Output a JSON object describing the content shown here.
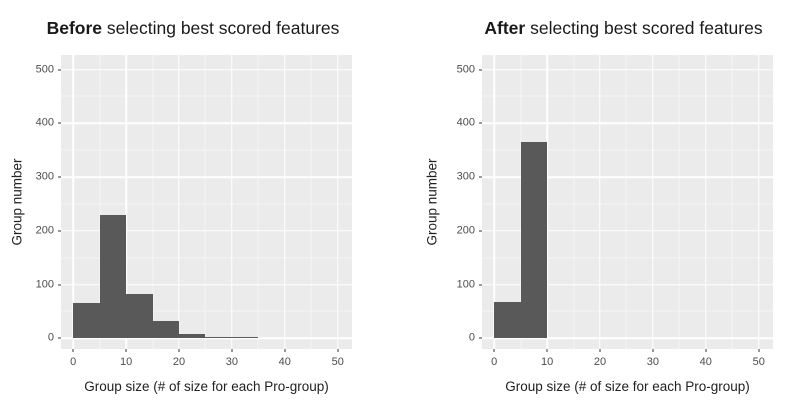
{
  "chart_data": [
    {
      "type": "bar",
      "subtype": "histogram",
      "title_bold": "Before",
      "title_rest": " selecting best scored features",
      "xlabel": "Group size (# of size for each Pro-group)",
      "ylabel": "Group number",
      "bin_start": 0,
      "bin_width": 5,
      "bin_edges": [
        0,
        5,
        10,
        15,
        20,
        25,
        30,
        35
      ],
      "counts": [
        65,
        230,
        83,
        32,
        8,
        3,
        3
      ],
      "xticks": [
        0,
        10,
        20,
        30,
        40,
        50
      ],
      "yticks": [
        0,
        100,
        200,
        300,
        400,
        500
      ],
      "xlim": [
        0,
        50
      ],
      "ylim": [
        0,
        500
      ],
      "grid": true,
      "legend": false
    },
    {
      "type": "bar",
      "subtype": "histogram",
      "title_bold": "After",
      "title_rest": " selecting best scored features",
      "xlabel": "Group size (# of size for each Pro-group)",
      "ylabel": "Group number",
      "bin_start": 0,
      "bin_width": 5,
      "bin_edges": [
        0,
        5,
        10
      ],
      "counts": [
        67,
        365
      ],
      "xticks": [
        0,
        10,
        20,
        30,
        40,
        50
      ],
      "yticks": [
        0,
        100,
        200,
        300,
        400,
        500
      ],
      "xlim": [
        0,
        50
      ],
      "ylim": [
        0,
        500
      ],
      "grid": true,
      "legend": false
    }
  ],
  "colors": {
    "bar_fill": "#595959",
    "panel_bg": "#ebebeb",
    "grid_major": "#ffffff",
    "grid_minor": "#ffffff",
    "tick_mark": "#333333",
    "tick_label": "#4d4d4d",
    "axis_title": "#222222",
    "title": "#1a1a1a",
    "background": "#ffffff"
  }
}
